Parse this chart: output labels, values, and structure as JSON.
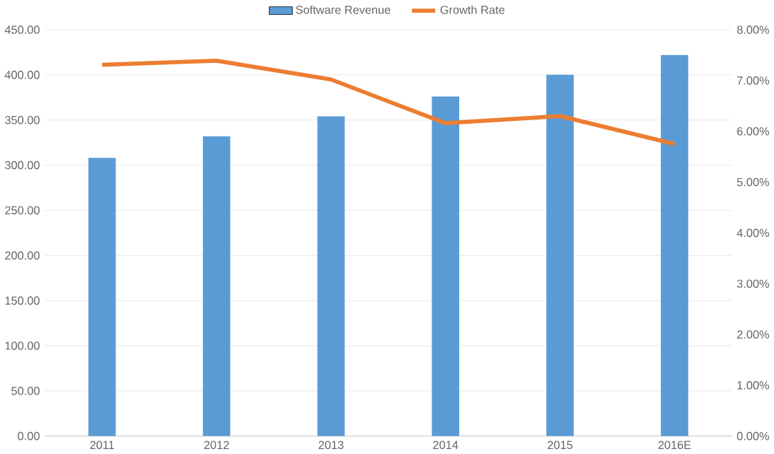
{
  "chart_data": {
    "type": "bar",
    "categories": [
      "2011",
      "2012",
      "2013",
      "2014",
      "2015",
      "2016E"
    ],
    "series": [
      {
        "name": "Software Revenue",
        "color": "#5b9bd5",
        "values": [
          308,
          332,
          354,
          376,
          400,
          422
        ]
      },
      {
        "name": "Growth Rate",
        "type": "line",
        "axis": "y2",
        "color": "#ed7d31",
        "values": [
          7.31,
          7.39,
          7.02,
          6.16,
          6.3,
          5.75
        ]
      }
    ],
    "ylim": [
      0,
      450
    ],
    "yticks": [
      {
        "value": 0,
        "label": "0.00"
      },
      {
        "value": 50,
        "label": "50.00"
      },
      {
        "value": 100,
        "label": "100.00"
      },
      {
        "value": 150,
        "label": "150.00"
      },
      {
        "value": 200,
        "label": "200.00"
      },
      {
        "value": 250,
        "label": "250.00"
      },
      {
        "value": 300,
        "label": "300.00"
      },
      {
        "value": 350,
        "label": "350.00"
      },
      {
        "value": 400,
        "label": "400.00"
      },
      {
        "value": 450,
        "label": "450.00"
      }
    ],
    "y2lim": [
      0,
      8
    ],
    "y2ticks": [
      {
        "value": 0,
        "label": "0.00%"
      },
      {
        "value": 1,
        "label": "1.00%"
      },
      {
        "value": 2,
        "label": "2.00%"
      },
      {
        "value": 3,
        "label": "3.00%"
      },
      {
        "value": 4,
        "label": "4.00%"
      },
      {
        "value": 5,
        "label": "5.00%"
      },
      {
        "value": 6,
        "label": "6.00%"
      },
      {
        "value": 7,
        "label": "7.00%"
      },
      {
        "value": 8,
        "label": "8.00%"
      }
    ],
    "grid": "y",
    "legend": "top",
    "marker": "none"
  }
}
